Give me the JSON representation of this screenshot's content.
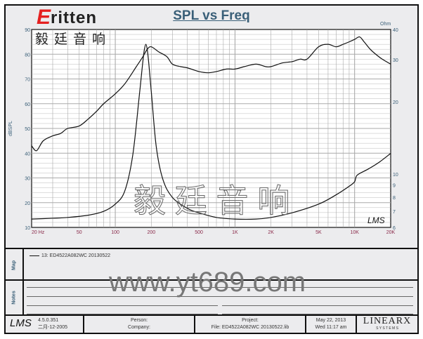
{
  "logo": {
    "brand": "Eritten",
    "chinese": "毅廷音响"
  },
  "watermarks": {
    "chinese": "毅 廷 音 响",
    "url": "www.yt689.com"
  },
  "chart_data": {
    "type": "line",
    "title": "SPL vs Freq",
    "ylabel": "dBSPL",
    "y2label": "Ohm",
    "xscale": "log",
    "xlim": [
      20,
      20000
    ],
    "ylim": [
      10,
      90
    ],
    "y2lim": [
      6,
      40
    ],
    "y2scale": "log",
    "grid": true,
    "xticks": [
      {
        "v": 20,
        "l": "20  Hz"
      },
      {
        "v": 50,
        "l": "50"
      },
      {
        "v": 100,
        "l": "100"
      },
      {
        "v": 200,
        "l": "200"
      },
      {
        "v": 500,
        "l": "500"
      },
      {
        "v": 1000,
        "l": "1K"
      },
      {
        "v": 2000,
        "l": "2K"
      },
      {
        "v": 5000,
        "l": "5K"
      },
      {
        "v": 10000,
        "l": "10K"
      },
      {
        "v": 20000,
        "l": "20K"
      }
    ],
    "yticks": [
      90,
      80,
      70,
      60,
      50,
      40,
      30,
      20,
      10
    ],
    "y2ticks": [
      40,
      30,
      20,
      10,
      9,
      8,
      7,
      6
    ],
    "series": [
      {
        "name": "SPL",
        "axis": "left",
        "x": [
          20,
          22,
          25,
          30,
          35,
          40,
          50,
          60,
          70,
          80,
          100,
          120,
          150,
          170,
          185,
          200,
          230,
          270,
          300,
          350,
          400,
          500,
          600,
          700,
          850,
          1000,
          1200,
          1500,
          1800,
          2000,
          2500,
          3000,
          3500,
          4000,
          5000,
          6000,
          7000,
          8000,
          9000,
          10000,
          11000,
          12000,
          13500,
          15000,
          17000,
          20000
        ],
        "y": [
          43,
          41,
          45,
          47,
          48,
          50,
          51,
          54,
          57,
          60,
          64,
          68,
          75,
          79,
          82,
          83,
          81,
          79,
          76,
          75,
          74.5,
          73,
          72.5,
          73,
          74,
          74,
          75,
          76,
          75,
          75,
          76.5,
          77,
          78,
          78,
          83,
          84,
          83,
          84,
          85,
          86,
          87,
          85,
          82,
          80,
          78,
          76
        ]
      },
      {
        "name": "Impedance",
        "axis": "right",
        "x": [
          20,
          30,
          40,
          60,
          80,
          100,
          120,
          140,
          160,
          175,
          185,
          200,
          220,
          250,
          300,
          400,
          500,
          700,
          1000,
          1500,
          2000,
          3000,
          5000,
          7000,
          9000,
          10000,
          10500,
          13000,
          16000,
          20000
        ],
        "y": [
          6.5,
          6.55,
          6.6,
          6.75,
          7.0,
          7.5,
          8.5,
          12,
          22,
          33,
          33,
          22,
          13,
          9.5,
          8,
          7.2,
          6.9,
          6.6,
          6.5,
          6.5,
          6.6,
          6.9,
          7.5,
          8.2,
          8.9,
          9.3,
          9.9,
          10.5,
          11.2,
          12.2
        ]
      }
    ]
  },
  "panels": {
    "map_label": "Map",
    "notes_label": "Notes",
    "map_entry": "13: ED4522A082WC   20130522"
  },
  "footer": {
    "lms": "LMS",
    "version": "4.5.0.351",
    "build_date": "二月-12-2005",
    "person": "Person:",
    "company": "Company:",
    "project": "Project:",
    "file": "File: ED4522A082WC  20130522.lib",
    "date": "May 22, 2013",
    "time": "Wed 11:17 am",
    "brand": "LINEARX",
    "brand_sub": "S Y S T E M S"
  },
  "colors": {
    "axis_label": "#3a5f78",
    "x_tick": "#8a2a4a",
    "curve": "#111111",
    "grid": "#9a9a9a"
  }
}
